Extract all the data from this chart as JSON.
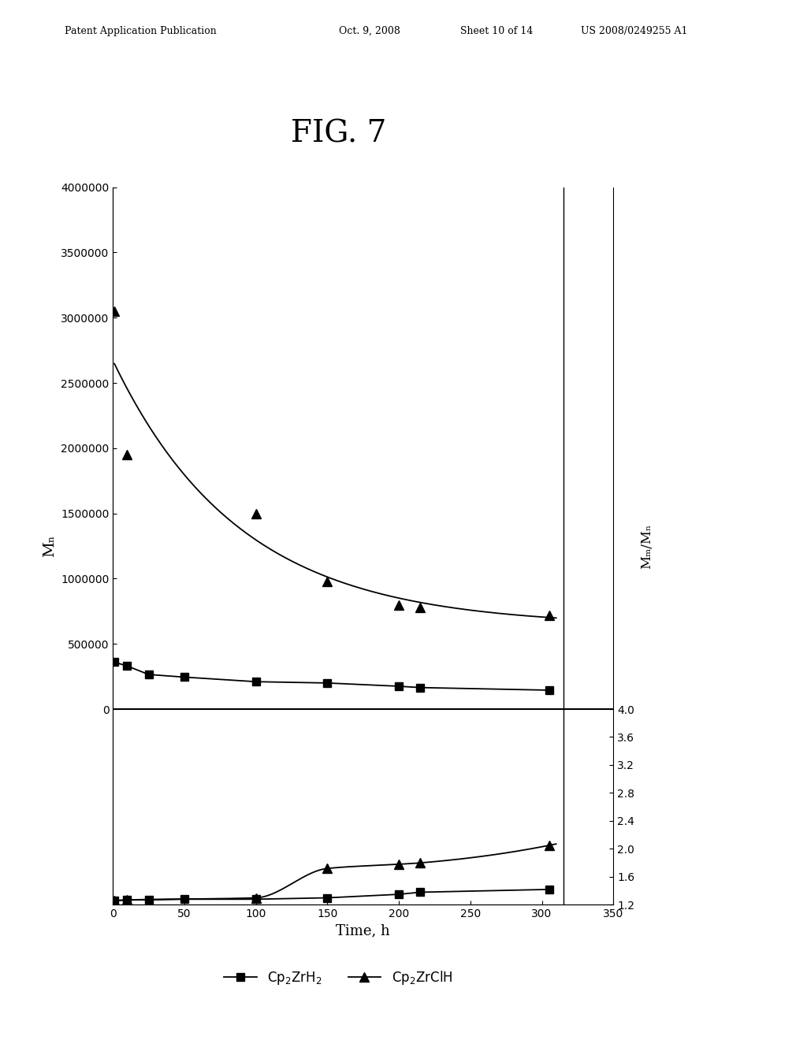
{
  "title": "FIG. 7",
  "header_line1": "Patent Application Publication",
  "header_line2": "Oct. 9, 2008",
  "header_line3": "Sheet 10 of 14",
  "header_line4": "US 2008/0249255 A1",
  "xlabel": "Time, h",
  "ylabel_left": "Mₙ",
  "ylabel_right": "Mₘ/Mₙ",
  "xlim": [
    0,
    350
  ],
  "xticks": [
    0,
    50,
    100,
    150,
    200,
    250,
    300,
    350
  ],
  "mn_ylim": [
    0,
    4000000
  ],
  "mn_yticks": [
    0,
    500000,
    1000000,
    1500000,
    2000000,
    2500000,
    3000000,
    3500000,
    4000000
  ],
  "mw_mn_ylim": [
    1.2,
    4.0
  ],
  "mw_mn_yticks": [
    1.2,
    1.6,
    2.0,
    2.4,
    2.8,
    3.2,
    3.6,
    4.0
  ],
  "cp2zrh2_mn_x": [
    1,
    10,
    25,
    50,
    100,
    150,
    200,
    215,
    305
  ],
  "cp2zrh2_mn_y": [
    360000,
    330000,
    265000,
    245000,
    210000,
    200000,
    175000,
    165000,
    145000
  ],
  "cp2zrclh_mn_x": [
    1,
    10,
    100,
    150,
    200,
    215,
    305
  ],
  "cp2zrclh_mn_y": [
    3050000,
    1950000,
    1500000,
    980000,
    800000,
    780000,
    720000
  ],
  "cp2zrh2_mwmn_x": [
    1,
    10,
    25,
    50,
    100,
    150,
    200,
    215,
    305
  ],
  "cp2zrh2_mwmn_y": [
    1.26,
    1.27,
    1.27,
    1.28,
    1.28,
    1.3,
    1.35,
    1.38,
    1.42
  ],
  "cp2zrclh_mwmn_x": [
    1,
    10,
    100,
    150,
    200,
    215,
    305
  ],
  "cp2zrclh_mwmn_y": [
    1.26,
    1.27,
    1.3,
    1.72,
    1.78,
    1.8,
    2.05
  ],
  "legend_label_sq": "Cp$_2$ZrH$_2$",
  "legend_label_tr": "Cp$_2$ZrClH",
  "color": "#000000",
  "background": "#ffffff"
}
